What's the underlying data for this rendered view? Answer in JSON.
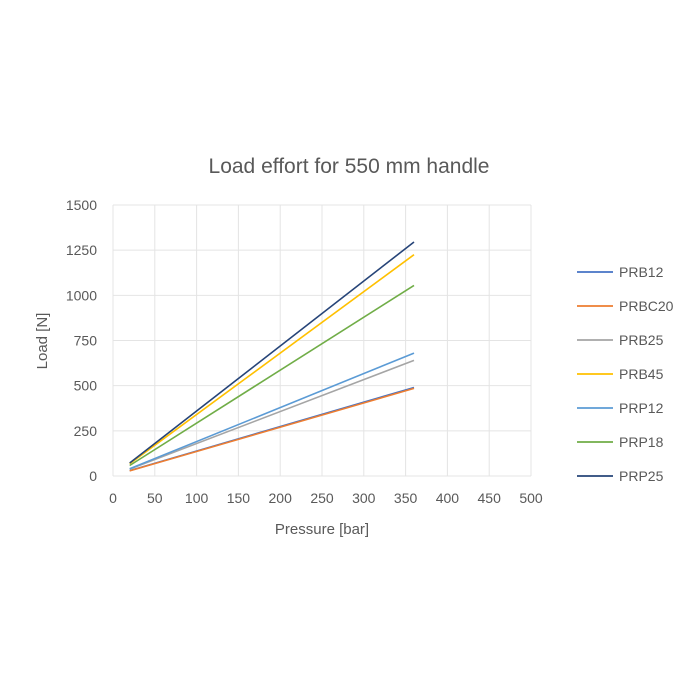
{
  "chart_data": {
    "type": "line",
    "title": "Load effort for 550 mm handle",
    "xlabel": "Pressure [bar]",
    "ylabel": "Load [N]",
    "xlim": [
      0,
      500
    ],
    "ylim": [
      0,
      1500
    ],
    "x_ticks": [
      "0",
      "50",
      "100",
      "150",
      "200",
      "250",
      "300",
      "350",
      "400",
      "450",
      "500"
    ],
    "y_ticks": [
      "0",
      "250",
      "500",
      "750",
      "1000",
      "1250",
      "1500"
    ],
    "x_tick_values": [
      0,
      50,
      100,
      150,
      200,
      250,
      300,
      350,
      400,
      450,
      500
    ],
    "y_tick_values": [
      0,
      250,
      500,
      750,
      1000,
      1250,
      1500
    ],
    "grid": true,
    "legend_position": "right",
    "series": [
      {
        "name": "PRB12",
        "color": "#4472c4",
        "x": [
          20,
          360
        ],
        "values": [
          30,
          490
        ]
      },
      {
        "name": "PRBC20",
        "color": "#ed7d31",
        "x": [
          20,
          360
        ],
        "values": [
          28,
          485
        ]
      },
      {
        "name": "PRB25",
        "color": "#a5a5a5",
        "x": [
          20,
          360
        ],
        "values": [
          38,
          640
        ]
      },
      {
        "name": "PRB45",
        "color": "#ffc000",
        "x": [
          20,
          360
        ],
        "values": [
          68,
          1225
        ]
      },
      {
        "name": "PRP12",
        "color": "#5b9bd5",
        "x": [
          20,
          360
        ],
        "values": [
          40,
          680
        ]
      },
      {
        "name": "PRP18",
        "color": "#70ad47",
        "x": [
          20,
          360
        ],
        "values": [
          58,
          1055
        ]
      },
      {
        "name": "PRP25",
        "color": "#264478",
        "x": [
          20,
          360
        ],
        "values": [
          72,
          1295
        ]
      }
    ]
  }
}
